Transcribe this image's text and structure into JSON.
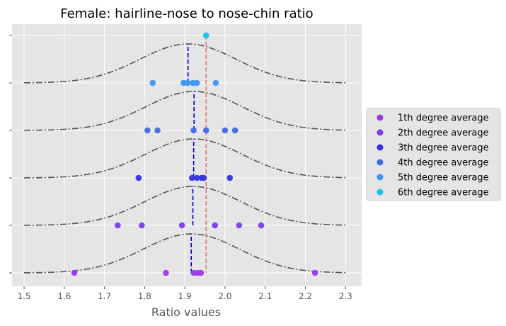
{
  "chart_data": {
    "type": "scatter",
    "title": "Female: hairline-nose to nose-chin ratio",
    "xlabel": "Ratio values",
    "ylabel": "",
    "xlim": [
      1.47,
      2.34
    ],
    "xticks": [
      "1.5",
      "1.6",
      "1.7",
      "1.8",
      "1.9",
      "2.0",
      "2.1",
      "2.2",
      "2.3"
    ],
    "xtick_values": [
      1.5,
      1.6,
      1.7,
      1.8,
      1.9,
      2.0,
      2.1,
      2.2,
      2.3
    ],
    "yticks_count": 6,
    "grid": true,
    "legend_position": "center-right",
    "reference_line_x": 1.953,
    "reference_line_color": "#e8736d",
    "mean_line_color": "#0000cc",
    "curve_color": "#555555",
    "curve_x_range": [
      1.5,
      2.3
    ],
    "series": [
      {
        "name": "1th degree average",
        "color": "#9b37e8",
        "level": 0,
        "values": [
          1.625,
          1.853,
          1.922,
          1.932,
          1.94,
          2.224
        ],
        "mean": 1.916,
        "curve_center": 1.916,
        "curve_sd": 0.12
      },
      {
        "name": "2th degree average",
        "color": "#7b3de9",
        "level": 1,
        "values": [
          1.733,
          1.793,
          1.893,
          1.975,
          2.035,
          2.09
        ],
        "mean": 1.92,
        "curve_center": 1.92,
        "curve_sd": 0.12
      },
      {
        "name": "3th degree average",
        "color": "#3131e0",
        "level": 2,
        "values": [
          1.785,
          1.918,
          1.93,
          1.942,
          1.947,
          2.012
        ],
        "mean": 1.922,
        "curve_center": 1.922,
        "curve_sd": 0.12
      },
      {
        "name": "4th degree average",
        "color": "#4169e8",
        "level": 3,
        "values": [
          1.807,
          1.832,
          1.922,
          1.953,
          2.0,
          2.025
        ],
        "mean": 1.923,
        "curve_center": 1.923,
        "curve_sd": 0.12
      },
      {
        "name": "5th degree average",
        "color": "#3a96ee",
        "level": 4,
        "values": [
          1.82,
          1.897,
          1.907,
          1.92,
          1.93,
          1.977
        ],
        "mean": 1.908,
        "curve_center": 1.908,
        "curve_sd": 0.12
      },
      {
        "name": "6th degree average",
        "color": "#19bfee",
        "level": 5,
        "values": [
          1.953
        ],
        "mean": null,
        "curve_center": null,
        "curve_sd": null
      }
    ]
  }
}
